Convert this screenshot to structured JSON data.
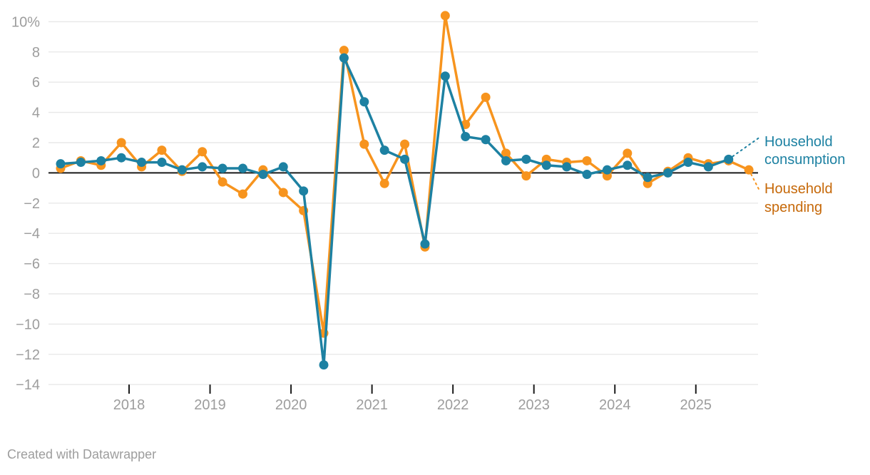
{
  "chart_data": {
    "type": "line",
    "title": "",
    "xlabel": "",
    "ylabel": "",
    "unit": "%",
    "grid": "horizontal",
    "legend_position": "right-direct-labels",
    "background": "#ffffff",
    "zero_line_color": "#1a1a1a",
    "gridline_color": "#e8e8e8",
    "axis_text_color": "#9d9d9d",
    "ylim": [
      -14,
      10.5
    ],
    "x": [
      "2017 Q1",
      "2017 Q2",
      "2017 Q3",
      "2017 Q4",
      "2018 Q1",
      "2018 Q2",
      "2018 Q3",
      "2018 Q4",
      "2019 Q1",
      "2019 Q2",
      "2019 Q3",
      "2019 Q4",
      "2020 Q1",
      "2020 Q2",
      "2020 Q3",
      "2020 Q4",
      "2021 Q1",
      "2021 Q2",
      "2021 Q3",
      "2021 Q4",
      "2022 Q1",
      "2022 Q2",
      "2022 Q3",
      "2022 Q4",
      "2023 Q1",
      "2023 Q2",
      "2023 Q3",
      "2023 Q4",
      "2024 Q1",
      "2024 Q2",
      "2024 Q3",
      "2024 Q4",
      "2025 Q1",
      "2025 Q2",
      "2025 Q3"
    ],
    "x_tick_labels": [
      "2018",
      "2019",
      "2020",
      "2021",
      "2022",
      "2023",
      "2024",
      "2025"
    ],
    "y_tick_values": [
      10,
      8,
      6,
      4,
      2,
      0,
      -2,
      -4,
      -6,
      -8,
      -10,
      -12,
      -14
    ],
    "y_tick_labels": [
      "10%",
      "8",
      "6",
      "4",
      "2",
      "0",
      "−2",
      "−4",
      "−6",
      "−8",
      "−10",
      "−12",
      "−14"
    ],
    "series": [
      {
        "name": "Household consumption",
        "color": "#1d81a2",
        "label_color": "#1d81a2",
        "label_lines": [
          "Household",
          "consumption"
        ],
        "values": [
          0.6,
          0.7,
          0.8,
          1.0,
          0.7,
          0.7,
          0.2,
          0.4,
          0.3,
          0.3,
          -0.1,
          0.4,
          -1.2,
          -12.7,
          7.6,
          4.7,
          1.5,
          0.9,
          -4.7,
          6.4,
          2.4,
          2.2,
          0.8,
          0.9,
          0.5,
          0.4,
          -0.1,
          0.2,
          0.5,
          -0.3,
          0.0,
          0.7,
          0.4,
          0.9,
          null
        ]
      },
      {
        "name": "Household spending",
        "color": "#f7941e",
        "label_color": "#c6690a",
        "label_lines": [
          "Household",
          "spending"
        ],
        "values": [
          0.3,
          0.8,
          0.5,
          2.0,
          0.4,
          1.5,
          0.1,
          1.4,
          -0.6,
          -1.4,
          0.2,
          -1.3,
          -2.5,
          -10.6,
          8.1,
          1.9,
          -0.7,
          1.9,
          -4.9,
          10.4,
          3.2,
          5.0,
          1.3,
          -0.2,
          0.9,
          0.7,
          0.8,
          -0.2,
          1.3,
          -0.7,
          0.1,
          1.0,
          0.6,
          0.8,
          0.2
        ]
      }
    ]
  },
  "footer": {
    "credit": "Created with Datawrapper"
  }
}
